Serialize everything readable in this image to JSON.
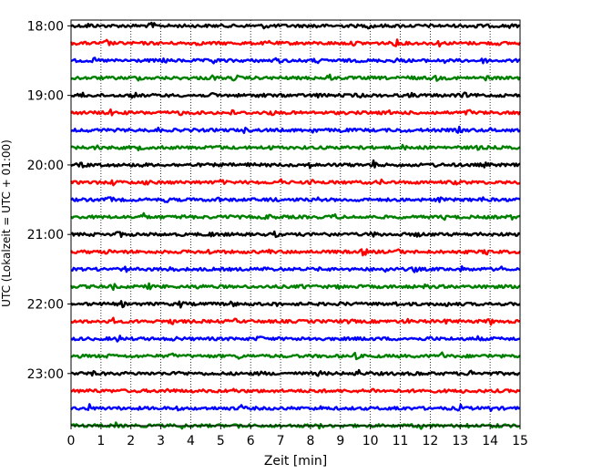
{
  "chart_data": {
    "type": "line",
    "title": "",
    "xlabel": "Zeit  [min]",
    "ylabel": "UTC (Lokalzeit = UTC + 01:00)",
    "xlim": [
      0,
      15
    ],
    "ylim_minutes_utc": [
      1075,
      1425
    ],
    "x_ticks": [
      0,
      1,
      2,
      3,
      4,
      5,
      6,
      7,
      8,
      9,
      10,
      11,
      12,
      13,
      14,
      15
    ],
    "x_tick_labels": [
      "0",
      "1",
      "2",
      "3",
      "4",
      "5",
      "6",
      "7",
      "8",
      "9",
      "10",
      "11",
      "12",
      "13",
      "14",
      "15"
    ],
    "y_ticks": [
      "18:00",
      "19:00",
      "20:00",
      "21:00",
      "22:00",
      "23:00"
    ],
    "vertical_grid": "dotted at every x tick",
    "color_cycle": [
      "#000000",
      "#ff0000",
      "#0000ff",
      "#008000"
    ],
    "series_start_times": [
      "18:00",
      "18:15",
      "18:30",
      "18:45",
      "19:00",
      "19:15",
      "19:30",
      "19:45",
      "20:00",
      "20:15",
      "20:30",
      "20:45",
      "21:00",
      "21:15",
      "21:30",
      "21:45",
      "22:00",
      "22:15",
      "22:30",
      "22:45",
      "23:00",
      "23:15",
      "23:30",
      "23:45"
    ],
    "trace_duration_min": 15,
    "events": [
      [
        [
          0.6,
          0.4
        ],
        [
          2.7,
          0.6
        ],
        [
          6.5,
          0.4
        ],
        [
          8.2,
          0.4
        ],
        [
          10.0,
          0.5
        ],
        [
          13.5,
          0.6
        ],
        [
          14.6,
          0.3
        ]
      ],
      [
        [
          1.2,
          0.6
        ],
        [
          4.2,
          0.3
        ],
        [
          6.6,
          0.3
        ],
        [
          9.5,
          0.3
        ],
        [
          10.9,
          0.9
        ],
        [
          12.3,
          0.4
        ],
        [
          14.2,
          0.3
        ]
      ],
      [
        [
          0.8,
          0.3
        ],
        [
          3.1,
          0.4
        ],
        [
          4.8,
          0.6
        ],
        [
          6.9,
          0.4
        ],
        [
          8.2,
          0.4
        ],
        [
          10.9,
          0.4
        ],
        [
          12.5,
          0.3
        ],
        [
          13.8,
          0.4
        ]
      ],
      [
        [
          2.2,
          0.4
        ],
        [
          4.7,
          0.4
        ],
        [
          5.5,
          0.5
        ],
        [
          8.6,
          0.6
        ],
        [
          11.3,
          0.4
        ],
        [
          12.2,
          0.4
        ],
        [
          13.9,
          0.3
        ]
      ],
      [
        [
          0.4,
          0.3
        ],
        [
          2.1,
          0.4
        ],
        [
          4.8,
          0.4
        ],
        [
          6.4,
          0.4
        ],
        [
          8.3,
          0.4
        ],
        [
          9.6,
          0.4
        ],
        [
          11.4,
          0.3
        ],
        [
          13.1,
          0.6
        ]
      ],
      [
        [
          1.3,
          0.5
        ],
        [
          3.6,
          0.4
        ],
        [
          5.4,
          0.3
        ],
        [
          6.7,
          0.3
        ],
        [
          10.7,
          0.4
        ],
        [
          13.3,
          0.5
        ]
      ],
      [
        [
          0.7,
          0.3
        ],
        [
          2.9,
          0.3
        ],
        [
          5.8,
          0.3
        ],
        [
          8.1,
          0.4
        ],
        [
          9.0,
          0.4
        ],
        [
          11.1,
          0.3
        ],
        [
          13.0,
          0.5
        ],
        [
          14.1,
          0.3
        ]
      ],
      [
        [
          0.9,
          0.3
        ],
        [
          2.3,
          0.4
        ],
        [
          4.9,
          0.3
        ],
        [
          6.6,
          0.3
        ],
        [
          9.6,
          0.6
        ],
        [
          11.1,
          0.3
        ],
        [
          13.6,
          0.3
        ]
      ],
      [
        [
          0.4,
          0.4
        ],
        [
          2.4,
          0.3
        ],
        [
          6.0,
          0.3
        ],
        [
          8.0,
          0.4
        ],
        [
          10.1,
          0.7
        ],
        [
          12.1,
          0.3
        ],
        [
          13.8,
          0.3
        ]
      ],
      [
        [
          1.4,
          0.4
        ],
        [
          2.5,
          0.3
        ],
        [
          5.0,
          0.4
        ],
        [
          7.0,
          0.4
        ],
        [
          8.1,
          0.3
        ],
        [
          10.4,
          0.4
        ],
        [
          12.9,
          0.4
        ]
      ],
      [
        [
          1.3,
          0.6
        ],
        [
          3.2,
          0.3
        ],
        [
          4.9,
          0.3
        ],
        [
          6.7,
          0.3
        ],
        [
          8.2,
          0.3
        ],
        [
          9.5,
          0.4
        ],
        [
          12.3,
          0.3
        ],
        [
          13.7,
          0.4
        ]
      ],
      [
        [
          2.4,
          0.6
        ],
        [
          3.8,
          0.3
        ],
        [
          5.3,
          0.3
        ],
        [
          6.6,
          0.5
        ],
        [
          8.8,
          0.5
        ],
        [
          12.5,
          0.3
        ],
        [
          14.7,
          0.3
        ]
      ],
      [
        [
          1.6,
          0.6
        ],
        [
          4.7,
          0.3
        ],
        [
          6.8,
          0.4
        ],
        [
          8.5,
          0.8
        ],
        [
          10.1,
          0.4
        ],
        [
          11.6,
          0.3
        ],
        [
          13.6,
          0.3
        ]
      ],
      [
        [
          1.2,
          0.3
        ],
        [
          4.6,
          0.3
        ],
        [
          6.6,
          0.3
        ],
        [
          9.8,
          0.7
        ],
        [
          10.9,
          0.4
        ],
        [
          13.9,
          0.5
        ]
      ],
      [
        [
          1.8,
          0.4
        ],
        [
          3.4,
          0.4
        ],
        [
          6.5,
          0.3
        ],
        [
          8.4,
          0.3
        ],
        [
          10.5,
          0.4
        ],
        [
          11.5,
          0.5
        ],
        [
          13.1,
          0.4
        ],
        [
          14.4,
          0.3
        ]
      ],
      [
        [
          1.4,
          0.4
        ],
        [
          2.6,
          0.4
        ],
        [
          4.3,
          0.3
        ],
        [
          7.8,
          0.3
        ],
        [
          9.0,
          0.3
        ],
        [
          11.9,
          0.4
        ],
        [
          13.9,
          0.6
        ]
      ],
      [
        [
          1.7,
          0.4
        ],
        [
          3.7,
          0.6
        ],
        [
          5.4,
          0.4
        ],
        [
          6.8,
          0.3
        ],
        [
          9.1,
          0.4
        ],
        [
          10.8,
          0.3
        ],
        [
          12.6,
          0.3
        ]
      ],
      [
        [
          1.4,
          0.5
        ],
        [
          3.4,
          0.4
        ],
        [
          5.5,
          0.3
        ],
        [
          9.3,
          0.3
        ],
        [
          11.2,
          0.4
        ],
        [
          12.6,
          0.4
        ],
        [
          14.0,
          0.5
        ]
      ],
      [
        [
          1.6,
          0.5
        ],
        [
          3.5,
          0.3
        ],
        [
          6.3,
          0.4
        ],
        [
          8.0,
          0.7
        ],
        [
          9.8,
          0.3
        ],
        [
          12.0,
          0.3
        ],
        [
          13.6,
          0.3
        ]
      ],
      [
        [
          1.3,
          0.3
        ],
        [
          3.4,
          0.3
        ],
        [
          5.6,
          0.3
        ],
        [
          9.5,
          0.5
        ],
        [
          12.4,
          0.6
        ],
        [
          13.9,
          0.4
        ]
      ],
      [
        [
          0.7,
          0.3
        ],
        [
          3.6,
          0.4
        ],
        [
          6.4,
          0.3
        ],
        [
          8.3,
          0.3
        ],
        [
          9.6,
          0.6
        ],
        [
          11.6,
          0.3
        ],
        [
          13.4,
          0.6
        ]
      ],
      [
        [
          0.7,
          0.3
        ],
        [
          3.3,
          0.6
        ],
        [
          5.4,
          0.3
        ],
        [
          8.2,
          0.4
        ],
        [
          10.1,
          0.3
        ],
        [
          11.8,
          0.6
        ],
        [
          13.2,
          0.4
        ]
      ],
      [
        [
          0.6,
          0.7
        ],
        [
          3.5,
          0.3
        ],
        [
          5.7,
          0.5
        ],
        [
          8.4,
          0.3
        ],
        [
          10.9,
          0.4
        ],
        [
          13.0,
          0.5
        ],
        [
          14.0,
          0.3
        ]
      ],
      [
        [
          1.5,
          0.4
        ],
        [
          3.7,
          0.4
        ],
        [
          5.6,
          0.5
        ],
        [
          8.3,
          0.3
        ],
        [
          11.7,
          0.6
        ],
        [
          13.2,
          0.4
        ],
        [
          14.2,
          0.3
        ]
      ]
    ]
  }
}
